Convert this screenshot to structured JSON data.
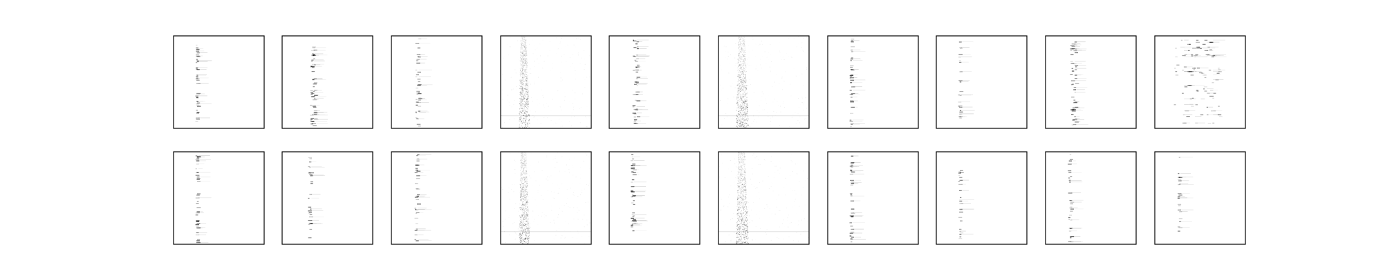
{
  "figure": {
    "background": "#ffffff",
    "axes_color": "#000000",
    "mark_color": "#000000"
  },
  "chart_data": {
    "type": "heatmap",
    "layout": {
      "rows": 2,
      "cols": 10
    },
    "colormap": "gray_r",
    "axes_visible_ticks": false,
    "grid": false,
    "legend": "none",
    "panels": [
      {
        "row": 0,
        "col": 0,
        "pattern": "column",
        "center": 0.25,
        "spread": 0.02,
        "density": 0.55,
        "intensity": 0.55
      },
      {
        "row": 0,
        "col": 1,
        "pattern": "column",
        "center": 0.33,
        "spread": 0.05,
        "density": 0.85,
        "intensity": 0.6
      },
      {
        "row": 0,
        "col": 2,
        "pattern": "column",
        "center": 0.28,
        "spread": 0.04,
        "density": 0.55,
        "intensity": 0.55
      },
      {
        "row": 0,
        "col": 3,
        "pattern": "diffuse",
        "center": 0.24,
        "spread": 0.06,
        "density": 0.9,
        "intensity": 0.45
      },
      {
        "row": 0,
        "col": 4,
        "pattern": "column",
        "center": 0.28,
        "spread": 0.05,
        "density": 0.7,
        "intensity": 0.6
      },
      {
        "row": 0,
        "col": 5,
        "pattern": "diffuse",
        "center": 0.24,
        "spread": 0.07,
        "density": 0.95,
        "intensity": 0.45
      },
      {
        "row": 0,
        "col": 6,
        "pattern": "column",
        "center": 0.25,
        "spread": 0.02,
        "density": 0.55,
        "intensity": 0.55
      },
      {
        "row": 0,
        "col": 7,
        "pattern": "column",
        "center": 0.25,
        "spread": 0.02,
        "density": 0.3,
        "intensity": 0.5
      },
      {
        "row": 0,
        "col": 8,
        "pattern": "column",
        "center": 0.3,
        "spread": 0.06,
        "density": 0.75,
        "intensity": 0.6
      },
      {
        "row": 0,
        "col": 9,
        "pattern": "multi",
        "center": 0.35,
        "spread": 0.2,
        "density": 0.7,
        "intensity": 0.45
      },
      {
        "row": 1,
        "col": 0,
        "pattern": "column",
        "center": 0.25,
        "spread": 0.02,
        "density": 0.5,
        "intensity": 0.6
      },
      {
        "row": 1,
        "col": 1,
        "pattern": "column",
        "center": 0.3,
        "spread": 0.03,
        "density": 0.35,
        "intensity": 0.55
      },
      {
        "row": 1,
        "col": 2,
        "pattern": "column",
        "center": 0.27,
        "spread": 0.03,
        "density": 0.5,
        "intensity": 0.55
      },
      {
        "row": 1,
        "col": 3,
        "pattern": "diffuse",
        "center": 0.24,
        "spread": 0.06,
        "density": 0.9,
        "intensity": 0.45
      },
      {
        "row": 1,
        "col": 4,
        "pattern": "column",
        "center": 0.25,
        "spread": 0.03,
        "density": 0.6,
        "intensity": 0.6
      },
      {
        "row": 1,
        "col": 5,
        "pattern": "diffuse",
        "center": 0.24,
        "spread": 0.07,
        "density": 0.95,
        "intensity": 0.45
      },
      {
        "row": 1,
        "col": 6,
        "pattern": "column",
        "center": 0.25,
        "spread": 0.02,
        "density": 0.55,
        "intensity": 0.55
      },
      {
        "row": 1,
        "col": 7,
        "pattern": "column",
        "center": 0.25,
        "spread": 0.02,
        "density": 0.3,
        "intensity": 0.5
      },
      {
        "row": 1,
        "col": 8,
        "pattern": "column",
        "center": 0.26,
        "spread": 0.03,
        "density": 0.4,
        "intensity": 0.6
      },
      {
        "row": 1,
        "col": 9,
        "pattern": "column",
        "center": 0.26,
        "spread": 0.02,
        "density": 0.25,
        "intensity": 0.5
      }
    ]
  }
}
